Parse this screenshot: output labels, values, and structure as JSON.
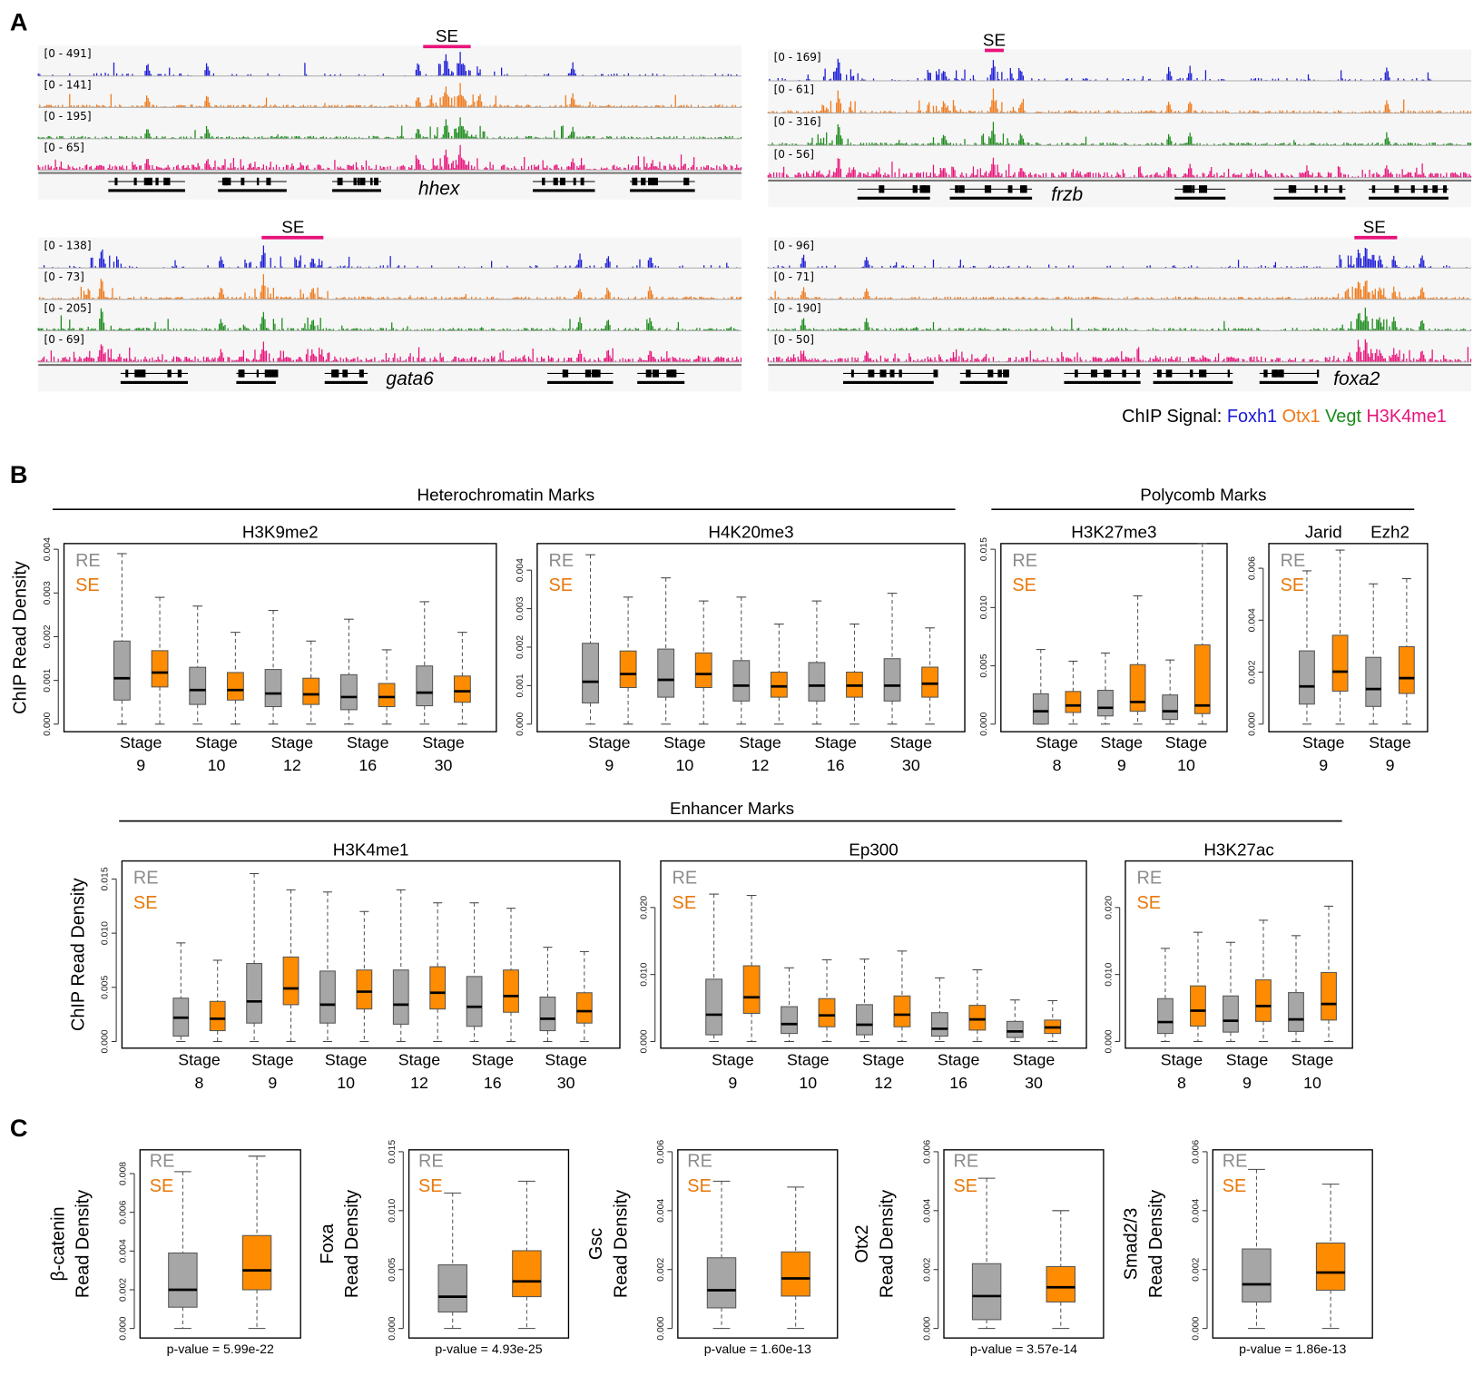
{
  "panel_labels": {
    "a": "A",
    "b": "B",
    "c": "C"
  },
  "panel_a": {
    "browsers": [
      {
        "gene": "hhex",
        "se_label": "SE",
        "ranges": [
          "[0 - 491]",
          "[0 - 141]",
          "[0 - 195]",
          "[0 - 65]"
        ]
      },
      {
        "gene": "frzb",
        "se_label": "SE",
        "ranges": [
          "[0 - 169]",
          "[0 - 61]",
          "[0 - 316]",
          "[0 - 56]"
        ]
      },
      {
        "gene": "gata6",
        "se_label": "SE",
        "ranges": [
          "[0 - 138]",
          "[0 - 73]",
          "[0 - 205]",
          "[0 - 69]"
        ]
      },
      {
        "gene": "foxa2",
        "se_label": "SE",
        "ranges": [
          "[0 - 96]",
          "[0 - 71]",
          "[0 - 190]",
          "[0 - 50]"
        ]
      }
    ],
    "legend": {
      "prefix": "ChIP Signal:",
      "items": [
        {
          "label": "Foxh1",
          "color": "#1a1ad6"
        },
        {
          "label": "Otx1",
          "color": "#f07818"
        },
        {
          "label": "Vegt",
          "color": "#1a8a1a"
        },
        {
          "label": "H3K4me1",
          "color": "#e8127a"
        }
      ]
    },
    "se_bar_color": "#e8127a"
  },
  "panel_b": {
    "sections": [
      "Heterochromatin Marks",
      "Polycomb Marks",
      "Enhancer Marks"
    ]
  },
  "colors": {
    "RE": "#a6a6a6",
    "SE": "#ff8c00",
    "RE_text": "#8c8c8c",
    "SE_text": "#e8780a"
  },
  "chart_data": [
    {
      "type": "box",
      "title": "H3K9me2",
      "ylabel": [
        "ChIP Read Density"
      ],
      "yticks": [
        0,
        0.001,
        0.002,
        0.003,
        0.004
      ],
      "legend": [
        "RE",
        "SE"
      ],
      "groups": [
        {
          "label": "Stage",
          "sub": "9",
          "RE": [
            0,
            0.00055,
            0.00105,
            0.0019,
            0.0039
          ],
          "SE": [
            0,
            0.00085,
            0.00118,
            0.00168,
            0.0029
          ]
        },
        {
          "label": "Stage",
          "sub": "10",
          "RE": [
            0,
            0.00045,
            0.00078,
            0.0013,
            0.0027
          ],
          "SE": [
            0,
            0.00055,
            0.00078,
            0.00118,
            0.0021
          ]
        },
        {
          "label": "Stage",
          "sub": "12",
          "RE": [
            0,
            0.0004,
            0.0007,
            0.00125,
            0.0026
          ],
          "SE": [
            0,
            0.00045,
            0.00068,
            0.00105,
            0.0019
          ]
        },
        {
          "label": "Stage",
          "sub": "16",
          "RE": [
            0,
            0.00033,
            0.00062,
            0.00113,
            0.0024
          ],
          "SE": [
            0,
            0.0004,
            0.00062,
            0.00093,
            0.0017
          ]
        },
        {
          "label": "Stage",
          "sub": "30",
          "RE": [
            0,
            0.00042,
            0.00072,
            0.00133,
            0.0028
          ],
          "SE": [
            0,
            0.0005,
            0.00075,
            0.0011,
            0.0021
          ]
        }
      ]
    },
    {
      "type": "box",
      "title": "H4K20me3",
      "ylabel": [],
      "yticks": [
        0,
        0.001,
        0.002,
        0.003,
        0.004
      ],
      "legend": [
        "RE",
        "SE"
      ],
      "groups": [
        {
          "label": "Stage",
          "sub": "9",
          "RE": [
            0,
            0.00055,
            0.0011,
            0.0021,
            0.0044
          ],
          "SE": [
            0,
            0.00095,
            0.0013,
            0.0019,
            0.0033
          ]
        },
        {
          "label": "Stage",
          "sub": "10",
          "RE": [
            0,
            0.0007,
            0.00115,
            0.00195,
            0.0038
          ],
          "SE": [
            0,
            0.00095,
            0.0013,
            0.00185,
            0.0032
          ]
        },
        {
          "label": "Stage",
          "sub": "12",
          "RE": [
            0,
            0.0006,
            0.001,
            0.00165,
            0.0033
          ],
          "SE": [
            0,
            0.0007,
            0.00098,
            0.00135,
            0.0026
          ]
        },
        {
          "label": "Stage",
          "sub": "16",
          "RE": [
            0,
            0.0006,
            0.001,
            0.0016,
            0.0032
          ],
          "SE": [
            0,
            0.0007,
            0.001,
            0.00135,
            0.0026
          ]
        },
        {
          "label": "Stage",
          "sub": "30",
          "RE": [
            0,
            0.0006,
            0.001,
            0.0017,
            0.0034
          ],
          "SE": [
            0,
            0.0007,
            0.00105,
            0.00148,
            0.0025
          ]
        }
      ]
    },
    {
      "type": "box",
      "title": "H3K27me3",
      "ylabel": [],
      "yticks": [
        0,
        0.005,
        0.01,
        0.015
      ],
      "legend": [
        "RE",
        "SE"
      ],
      "groups": [
        {
          "label": "Stage",
          "sub": "8",
          "RE": [
            0,
            0,
            0.0011,
            0.0026,
            0.0064
          ],
          "SE": [
            0,
            0.001,
            0.0016,
            0.0028,
            0.0054
          ]
        },
        {
          "label": "Stage",
          "sub": "9",
          "RE": [
            0,
            0.0007,
            0.0014,
            0.0029,
            0.0061
          ],
          "SE": [
            0,
            0.0011,
            0.0019,
            0.0051,
            0.011
          ]
        },
        {
          "label": "Stage",
          "sub": "10",
          "RE": [
            0,
            0.0004,
            0.0011,
            0.0025,
            0.0055
          ],
          "SE": [
            0,
            0.0009,
            0.0016,
            0.0068,
            0.0155
          ]
        }
      ]
    },
    {
      "type": "box",
      "title": "",
      "ylabel": [],
      "yticks": [
        0,
        0.002,
        0.004,
        0.006
      ],
      "legend": [
        "RE",
        "SE"
      ],
      "groups": [
        {
          "name": "Jarid",
          "label": "Stage",
          "sub": "9",
          "RE": [
            0,
            0.00077,
            0.00145,
            0.00282,
            0.0059
          ],
          "SE": [
            0,
            0.00127,
            0.00202,
            0.00342,
            0.0067
          ]
        },
        {
          "name": "Ezh2",
          "label": "Stage",
          "sub": "9",
          "RE": [
            0,
            0.00068,
            0.00135,
            0.00257,
            0.0054
          ],
          "SE": [
            0,
            0.00118,
            0.00177,
            0.00298,
            0.0056
          ]
        }
      ]
    },
    {
      "type": "box",
      "title": "H3K4me1",
      "ylabel": [
        "ChIP Read Density"
      ],
      "yticks": [
        0,
        0.005,
        0.01,
        0.015
      ],
      "legend": [
        "RE",
        "SE"
      ],
      "groups": [
        {
          "label": "Stage",
          "sub": "8",
          "RE": [
            0,
            0.0005,
            0.0022,
            0.004,
            0.0091
          ],
          "SE": [
            0,
            0.001,
            0.0021,
            0.0037,
            0.0075
          ]
        },
        {
          "label": "Stage",
          "sub": "9",
          "RE": [
            0,
            0.0017,
            0.0037,
            0.0072,
            0.0155
          ],
          "SE": [
            0,
            0.0034,
            0.0049,
            0.0078,
            0.014
          ]
        },
        {
          "label": "Stage",
          "sub": "10",
          "RE": [
            0,
            0.0017,
            0.0034,
            0.0065,
            0.0138
          ],
          "SE": [
            0,
            0.003,
            0.0046,
            0.0066,
            0.012
          ]
        },
        {
          "label": "Stage",
          "sub": "12",
          "RE": [
            0,
            0.0016,
            0.0034,
            0.0066,
            0.014
          ],
          "SE": [
            0,
            0.003,
            0.0045,
            0.0069,
            0.0128
          ]
        },
        {
          "label": "Stage",
          "sub": "16",
          "RE": [
            0,
            0.0014,
            0.0032,
            0.006,
            0.0128
          ],
          "SE": [
            0,
            0.0027,
            0.0042,
            0.0066,
            0.0123
          ]
        },
        {
          "label": "Stage",
          "sub": "30",
          "RE": [
            0,
            0.001,
            0.0021,
            0.0041,
            0.0087
          ],
          "SE": [
            0,
            0.0017,
            0.0028,
            0.0045,
            0.0083
          ]
        }
      ]
    },
    {
      "type": "box",
      "title": "Ep300",
      "ylabel": [],
      "yticks": [
        0,
        0.01,
        0.02
      ],
      "legend": [
        "RE",
        "SE"
      ],
      "groups": [
        {
          "label": "Stage",
          "sub": "9",
          "RE": [
            0,
            0.001,
            0.004,
            0.0093,
            0.022
          ],
          "SE": [
            0,
            0.0042,
            0.0066,
            0.0113,
            0.0218
          ]
        },
        {
          "label": "Stage",
          "sub": "10",
          "RE": [
            0,
            0.0012,
            0.0026,
            0.0052,
            0.011
          ],
          "SE": [
            0,
            0.0022,
            0.0039,
            0.0064,
            0.0122
          ]
        },
        {
          "label": "Stage",
          "sub": "12",
          "RE": [
            0,
            0.001,
            0.0025,
            0.0055,
            0.0123
          ],
          "SE": [
            0,
            0.0022,
            0.004,
            0.0068,
            0.0135
          ]
        },
        {
          "label": "Stage",
          "sub": "16",
          "RE": [
            0,
            0.0008,
            0.0019,
            0.0043,
            0.0095
          ],
          "SE": [
            0,
            0.0017,
            0.0033,
            0.0054,
            0.0107
          ]
        },
        {
          "label": "Stage",
          "sub": "30",
          "RE": [
            0,
            0.0006,
            0.0015,
            0.003,
            0.0062
          ],
          "SE": [
            0,
            0.0012,
            0.0021,
            0.0032,
            0.0061
          ]
        }
      ]
    },
    {
      "type": "box",
      "title": "H3K27ac",
      "ylabel": [],
      "yticks": [
        0,
        0.01,
        0.02
      ],
      "legend": [
        "RE",
        "SE"
      ],
      "groups": [
        {
          "label": "Stage",
          "sub": "8",
          "RE": [
            0,
            0.0012,
            0.0029,
            0.0064,
            0.0139
          ],
          "SE": [
            0,
            0.0023,
            0.0046,
            0.0083,
            0.0163
          ]
        },
        {
          "label": "Stage",
          "sub": "9",
          "RE": [
            0,
            0.0014,
            0.0031,
            0.0068,
            0.0148
          ],
          "SE": [
            0,
            0.003,
            0.0053,
            0.0092,
            0.0181
          ]
        },
        {
          "label": "Stage",
          "sub": "10",
          "RE": [
            0,
            0.0015,
            0.0033,
            0.0073,
            0.0158
          ],
          "SE": [
            0,
            0.0032,
            0.0056,
            0.0103,
            0.0202
          ]
        }
      ]
    },
    {
      "type": "box",
      "title": "",
      "ylabel": [
        "β-catenin",
        "Read Density"
      ],
      "yticks": [
        0,
        0.002,
        0.004,
        0.006,
        0.008
      ],
      "legend": [
        "RE",
        "SE"
      ],
      "pvalue": "p-value = 5.99e-22",
      "groups": [
        {
          "RE": [
            0,
            0.0011,
            0.002,
            0.0039,
            0.0081
          ],
          "SE": [
            0,
            0.002,
            0.003,
            0.0048,
            0.0089
          ]
        }
      ]
    },
    {
      "type": "box",
      "title": "",
      "ylabel": [
        "Foxa",
        "Read Density"
      ],
      "yticks": [
        0,
        0.005,
        0.01,
        0.015
      ],
      "legend": [
        "RE",
        "SE"
      ],
      "pvalue": "p-value = 4.93e-25",
      "groups": [
        {
          "RE": [
            0,
            0.0014,
            0.0027,
            0.0054,
            0.0115
          ],
          "SE": [
            0,
            0.0027,
            0.004,
            0.0066,
            0.0125
          ]
        }
      ]
    },
    {
      "type": "box",
      "title": "",
      "ylabel": [
        "Gsc",
        "Read Density"
      ],
      "yticks": [
        0,
        0.002,
        0.004,
        0.006
      ],
      "legend": [
        "RE",
        "SE"
      ],
      "pvalue": "p-value = 1.60e-13",
      "groups": [
        {
          "RE": [
            0,
            0.0007,
            0.0013,
            0.0024,
            0.005
          ],
          "SE": [
            0,
            0.0011,
            0.0017,
            0.0026,
            0.0048
          ]
        }
      ]
    },
    {
      "type": "box",
      "title": "",
      "ylabel": [
        "Otx2",
        "Read Density"
      ],
      "yticks": [
        0,
        0.002,
        0.004,
        0.006
      ],
      "legend": [
        "RE",
        "SE"
      ],
      "pvalue": "p-value = 3.57e-14",
      "groups": [
        {
          "RE": [
            0,
            0.0003,
            0.0011,
            0.0022,
            0.0051
          ],
          "SE": [
            0,
            0.0009,
            0.0014,
            0.0021,
            0.004
          ]
        }
      ]
    },
    {
      "type": "box",
      "title": "",
      "ylabel": [
        "Smad2/3",
        "Read Density"
      ],
      "yticks": [
        0,
        0.002,
        0.004,
        0.006
      ],
      "legend": [
        "RE",
        "SE"
      ],
      "pvalue": "p-value = 1.86e-13",
      "groups": [
        {
          "RE": [
            0,
            0.0009,
            0.0015,
            0.0027,
            0.0054
          ],
          "SE": [
            0,
            0.0013,
            0.0019,
            0.0029,
            0.0049
          ]
        }
      ]
    }
  ]
}
